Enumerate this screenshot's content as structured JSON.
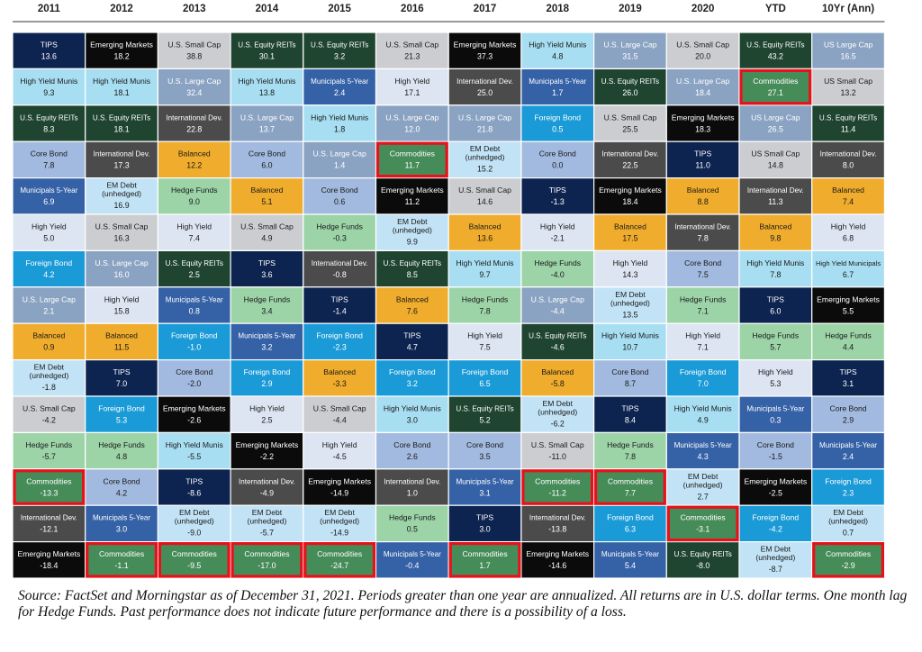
{
  "chart_data": {
    "type": "table",
    "title": "",
    "columns": [
      "2011",
      "2012",
      "2013",
      "2014",
      "2015",
      "2016",
      "2017",
      "2018",
      "2019",
      "2020",
      "YTD",
      "10Yr (Ann)"
    ],
    "highlight_class": "Commodities",
    "highlight_color": "#e8101a",
    "class_colors": {
      "TIPS": {
        "bg": "#0d2350",
        "fg": "#ffffff"
      },
      "Emerging Markets": {
        "bg": "#0b0b0b",
        "fg": "#ffffff"
      },
      "U.S. Small Cap": {
        "bg": "#cbcdd1",
        "fg": "#1a1a1a"
      },
      "U.S. Equity REITs": {
        "bg": "#1f4531",
        "fg": "#ffffff"
      },
      "High Yield Munis": {
        "bg": "#a8def2",
        "fg": "#1a1a1a"
      },
      "U.S. Large Cap": {
        "bg": "#8aa3c2",
        "fg": "#ffffff"
      },
      "US Large Cap": {
        "bg": "#8aa3c2",
        "fg": "#ffffff"
      },
      "US Small Cap": {
        "bg": "#cbcdd1",
        "fg": "#1a1a1a"
      },
      "High Yield": {
        "bg": "#dde5f3",
        "fg": "#1a1a1a"
      },
      "High Yield Municipals": {
        "bg": "#a8def2",
        "fg": "#1a1a1a"
      },
      "International Dev.": {
        "bg": "#4b4b4b",
        "fg": "#ffffff"
      },
      "Municipals 5-Year": {
        "bg": "#3561a6",
        "fg": "#ffffff"
      },
      "Foreign Bond": {
        "bg": "#1a9ad6",
        "fg": "#ffffff"
      },
      "Core Bond": {
        "bg": "#a2badf",
        "fg": "#1a1a1a"
      },
      "Commodities": {
        "bg": "#468c58",
        "fg": "#ffffff"
      },
      "EM Debt (unhedged)": {
        "bg": "#c2e3f6",
        "fg": "#1a1a1a"
      },
      "Balanced": {
        "bg": "#f0ac2c",
        "fg": "#1a1a1a"
      },
      "Hedge Funds": {
        "bg": "#9cd4a8",
        "fg": "#1a1a1a"
      }
    },
    "grid": [
      [
        {
          "c": "TIPS",
          "v": "13.6"
        },
        {
          "c": "Emerging Markets",
          "v": "18.2"
        },
        {
          "c": "U.S. Small Cap",
          "v": "38.8"
        },
        {
          "c": "U.S. Equity REITs",
          "v": "30.1"
        },
        {
          "c": "U.S. Equity REITs",
          "v": "3.2"
        },
        {
          "c": "U.S. Small Cap",
          "v": "21.3"
        },
        {
          "c": "Emerging Markets",
          "v": "37.3"
        },
        {
          "c": "High Yield Munis",
          "v": "4.8"
        },
        {
          "c": "U.S. Large Cap",
          "v": "31.5"
        },
        {
          "c": "U.S. Small Cap",
          "v": "20.0"
        },
        {
          "c": "U.S. Equity REITs",
          "v": "43.2"
        },
        {
          "c": "US Large Cap",
          "v": "16.5"
        }
      ],
      [
        {
          "c": "High Yield Munis",
          "v": "9.3"
        },
        {
          "c": "High Yield Munis",
          "v": "18.1"
        },
        {
          "c": "U.S. Large Cap",
          "v": "32.4"
        },
        {
          "c": "High Yield Munis",
          "v": "13.8"
        },
        {
          "c": "Municipals 5-Year",
          "v": "2.4"
        },
        {
          "c": "High Yield",
          "v": "17.1"
        },
        {
          "c": "International Dev.",
          "v": "25.0"
        },
        {
          "c": "Municipals 5-Year",
          "v": "1.7"
        },
        {
          "c": "U.S. Equity REITs",
          "v": "26.0"
        },
        {
          "c": "U.S. Large Cap",
          "v": "18.4"
        },
        {
          "c": "Commodities",
          "v": "27.1"
        },
        {
          "c": "US Small Cap",
          "v": "13.2"
        }
      ],
      [
        {
          "c": "U.S. Equity REITs",
          "v": "8.3"
        },
        {
          "c": "U.S. Equity REITs",
          "v": "18.1"
        },
        {
          "c": "International Dev.",
          "v": "22.8"
        },
        {
          "c": "U.S. Large Cap",
          "v": "13.7"
        },
        {
          "c": "High Yield Munis",
          "v": "1.8"
        },
        {
          "c": "U.S. Large Cap",
          "v": "12.0"
        },
        {
          "c": "U.S. Large Cap",
          "v": "21.8"
        },
        {
          "c": "Foreign Bond",
          "v": "0.5"
        },
        {
          "c": "U.S. Small Cap",
          "v": "25.5"
        },
        {
          "c": "Emerging Markets",
          "v": "18.3"
        },
        {
          "c": "US Large Cap",
          "v": "26.5"
        },
        {
          "c": "U.S. Equity REITs",
          "v": "11.4"
        }
      ],
      [
        {
          "c": "Core Bond",
          "v": "7.8"
        },
        {
          "c": "International Dev.",
          "v": "17.3"
        },
        {
          "c": "Balanced",
          "v": "12.2"
        },
        {
          "c": "Core Bond",
          "v": "6.0"
        },
        {
          "c": "U.S. Large Cap",
          "v": "1.4"
        },
        {
          "c": "Commodities",
          "v": "11.7"
        },
        {
          "c": "EM Debt (unhedged)",
          "v": "15.2"
        },
        {
          "c": "Core Bond",
          "v": "0.0"
        },
        {
          "c": "International Dev.",
          "v": "22.5"
        },
        {
          "c": "TIPS",
          "v": "11.0"
        },
        {
          "c": "US Small Cap",
          "v": "14.8"
        },
        {
          "c": "International Dev.",
          "v": "8.0"
        }
      ],
      [
        {
          "c": "Municipals 5-Year",
          "v": "6.9"
        },
        {
          "c": "EM Debt (unhedged)",
          "v": "16.9"
        },
        {
          "c": "Hedge Funds",
          "v": "9.0"
        },
        {
          "c": "Balanced",
          "v": "5.1"
        },
        {
          "c": "Core Bond",
          "v": "0.6"
        },
        {
          "c": "Emerging Markets",
          "v": "11.2"
        },
        {
          "c": "U.S. Small Cap",
          "v": "14.6"
        },
        {
          "c": "TIPS",
          "v": "-1.3"
        },
        {
          "c": "Emerging Markets",
          "v": "18.4"
        },
        {
          "c": "Balanced",
          "v": "8.8"
        },
        {
          "c": "International Dev.",
          "v": "11.3"
        },
        {
          "c": "Balanced",
          "v": "7.4"
        }
      ],
      [
        {
          "c": "High Yield",
          "v": "5.0"
        },
        {
          "c": "U.S. Small Cap",
          "v": "16.3"
        },
        {
          "c": "High Yield",
          "v": "7.4"
        },
        {
          "c": "U.S. Small Cap",
          "v": "4.9"
        },
        {
          "c": "Hedge Funds",
          "v": "-0.3"
        },
        {
          "c": "EM Debt (unhedged)",
          "v": "9.9"
        },
        {
          "c": "Balanced",
          "v": "13.6"
        },
        {
          "c": "High Yield",
          "v": "-2.1"
        },
        {
          "c": "Balanced",
          "v": "17.5"
        },
        {
          "c": "International Dev.",
          "v": "7.8"
        },
        {
          "c": "Balanced",
          "v": "9.8"
        },
        {
          "c": "High Yield",
          "v": "6.8"
        }
      ],
      [
        {
          "c": "Foreign Bond",
          "v": "4.2"
        },
        {
          "c": "U.S. Large Cap",
          "v": "16.0"
        },
        {
          "c": "U.S. Equity REITs",
          "v": "2.5"
        },
        {
          "c": "TIPS",
          "v": "3.6"
        },
        {
          "c": "International Dev.",
          "v": "-0.8"
        },
        {
          "c": "U.S. Equity REITs",
          "v": "8.5"
        },
        {
          "c": "High Yield Munis",
          "v": "9.7"
        },
        {
          "c": "Hedge Funds",
          "v": "-4.0"
        },
        {
          "c": "High Yield",
          "v": "14.3"
        },
        {
          "c": "Core Bond",
          "v": "7.5"
        },
        {
          "c": "High Yield Munis",
          "v": "7.8"
        },
        {
          "c": "High Yield Municipals",
          "v": "6.7"
        }
      ],
      [
        {
          "c": "U.S. Large Cap",
          "v": "2.1"
        },
        {
          "c": "High Yield",
          "v": "15.8"
        },
        {
          "c": "Municipals 5-Year",
          "v": "0.8"
        },
        {
          "c": "Hedge Funds",
          "v": "3.4"
        },
        {
          "c": "TIPS",
          "v": "-1.4"
        },
        {
          "c": "Balanced",
          "v": "7.6"
        },
        {
          "c": "Hedge Funds",
          "v": "7.8"
        },
        {
          "c": "U.S. Large Cap",
          "v": "-4.4"
        },
        {
          "c": "EM Debt (unhedged)",
          "v": "13.5"
        },
        {
          "c": "Hedge Funds",
          "v": "7.1"
        },
        {
          "c": "TIPS",
          "v": "6.0"
        },
        {
          "c": "Emerging Markets",
          "v": "5.5"
        }
      ],
      [
        {
          "c": "Balanced",
          "v": "0.9"
        },
        {
          "c": "Balanced",
          "v": "11.5"
        },
        {
          "c": "Foreign Bond",
          "v": "-1.0"
        },
        {
          "c": "Municipals 5-Year",
          "v": "3.2"
        },
        {
          "c": "Foreign Bond",
          "v": "-2.3"
        },
        {
          "c": "TIPS",
          "v": "4.7"
        },
        {
          "c": "High Yield",
          "v": "7.5"
        },
        {
          "c": "U.S. Equity REITs",
          "v": "-4.6"
        },
        {
          "c": "High Yield Munis",
          "v": "10.7"
        },
        {
          "c": "High Yield",
          "v": "7.1"
        },
        {
          "c": "Hedge Funds",
          "v": "5.7"
        },
        {
          "c": "Hedge Funds",
          "v": "4.4"
        }
      ],
      [
        {
          "c": "EM Debt (unhedged)",
          "v": "-1.8"
        },
        {
          "c": "TIPS",
          "v": "7.0"
        },
        {
          "c": "Core Bond",
          "v": "-2.0"
        },
        {
          "c": "Foreign Bond",
          "v": "2.9"
        },
        {
          "c": "Balanced",
          "v": "-3.3"
        },
        {
          "c": "Foreign Bond",
          "v": "3.2"
        },
        {
          "c": "Foreign Bond",
          "v": "6.5"
        },
        {
          "c": "Balanced",
          "v": "-5.8"
        },
        {
          "c": "Core Bond",
          "v": "8.7"
        },
        {
          "c": "Foreign Bond",
          "v": "7.0"
        },
        {
          "c": "High Yield",
          "v": "5.3"
        },
        {
          "c": "TIPS",
          "v": "3.1"
        }
      ],
      [
        {
          "c": "U.S. Small Cap",
          "v": "-4.2"
        },
        {
          "c": "Foreign Bond",
          "v": "5.3"
        },
        {
          "c": "Emerging Markets",
          "v": "-2.6"
        },
        {
          "c": "High Yield",
          "v": "2.5"
        },
        {
          "c": "U.S. Small Cap",
          "v": "-4.4"
        },
        {
          "c": "High Yield Munis",
          "v": "3.0"
        },
        {
          "c": "U.S. Equity REITs",
          "v": "5.2"
        },
        {
          "c": "EM Debt (unhedged)",
          "v": "-6.2"
        },
        {
          "c": "TIPS",
          "v": "8.4"
        },
        {
          "c": "High Yield Munis",
          "v": "4.9"
        },
        {
          "c": "Municipals 5-Year",
          "v": "0.3"
        },
        {
          "c": "Core Bond",
          "v": "2.9"
        }
      ],
      [
        {
          "c": "Hedge Funds",
          "v": "-5.7"
        },
        {
          "c": "Hedge Funds",
          "v": "4.8"
        },
        {
          "c": "High Yield Munis",
          "v": "-5.5"
        },
        {
          "c": "Emerging Markets",
          "v": "-2.2"
        },
        {
          "c": "High Yield",
          "v": "-4.5"
        },
        {
          "c": "Core Bond",
          "v": "2.6"
        },
        {
          "c": "Core Bond",
          "v": "3.5"
        },
        {
          "c": "U.S. Small Cap",
          "v": "-11.0"
        },
        {
          "c": "Hedge Funds",
          "v": "7.8"
        },
        {
          "c": "Municipals 5-Year",
          "v": "4.3"
        },
        {
          "c": "Core Bond",
          "v": "-1.5"
        },
        {
          "c": "Municipals 5-Year",
          "v": "2.4"
        }
      ],
      [
        {
          "c": "Commodities",
          "v": "-13.3"
        },
        {
          "c": "Core Bond",
          "v": "4.2"
        },
        {
          "c": "TIPS",
          "v": "-8.6"
        },
        {
          "c": "International Dev.",
          "v": "-4.9"
        },
        {
          "c": "Emerging Markets",
          "v": "-14.9"
        },
        {
          "c": "International Dev.",
          "v": "1.0"
        },
        {
          "c": "Municipals 5-Year",
          "v": "3.1"
        },
        {
          "c": "Commodities",
          "v": "-11.2"
        },
        {
          "c": "Commodities",
          "v": "7.7"
        },
        {
          "c": "EM Debt (unhedged)",
          "v": "2.7"
        },
        {
          "c": "Emerging Markets",
          "v": "-2.5"
        },
        {
          "c": "Foreign Bond",
          "v": "2.3"
        }
      ],
      [
        {
          "c": "International Dev.",
          "v": "-12.1"
        },
        {
          "c": "Municipals 5-Year",
          "v": "3.0"
        },
        {
          "c": "EM Debt (unhedged)",
          "v": "-9.0"
        },
        {
          "c": "EM Debt (unhedged)",
          "v": "-5.7"
        },
        {
          "c": "EM Debt (unhedged)",
          "v": "-14.9"
        },
        {
          "c": "Hedge Funds",
          "v": "0.5"
        },
        {
          "c": "TIPS",
          "v": "3.0"
        },
        {
          "c": "International Dev.",
          "v": "-13.8"
        },
        {
          "c": "Foreign Bond",
          "v": "6.3"
        },
        {
          "c": "Commodities",
          "v": "-3.1"
        },
        {
          "c": "Foreign Bond",
          "v": "-4.2"
        },
        {
          "c": "EM Debt (unhedged)",
          "v": "0.7"
        }
      ],
      [
        {
          "c": "Emerging Markets",
          "v": "-18.4"
        },
        {
          "c": "Commodities",
          "v": "-1.1"
        },
        {
          "c": "Commodities",
          "v": "-9.5"
        },
        {
          "c": "Commodities",
          "v": "-17.0"
        },
        {
          "c": "Commodities",
          "v": "-24.7"
        },
        {
          "c": "Municipals 5-Year",
          "v": "-0.4"
        },
        {
          "c": "Commodities",
          "v": "1.7"
        },
        {
          "c": "Emerging Markets",
          "v": "-14.6"
        },
        {
          "c": "Municipals 5-Year",
          "v": "5.4"
        },
        {
          "c": "U.S. Equity REITs",
          "v": "-8.0"
        },
        {
          "c": "EM Debt (unhedged)",
          "v": "-8.7"
        },
        {
          "c": "Commodities",
          "v": "-2.9"
        }
      ]
    ]
  },
  "footer": {
    "source_note": "Source: FactSet and Morningstar as of December 31, 2021. Periods greater than one year are annualized. All returns are in U.S. dollar terms. One month lag for Hedge Funds. Past performance does not indicate future performance and there is a possibility of a loss."
  }
}
